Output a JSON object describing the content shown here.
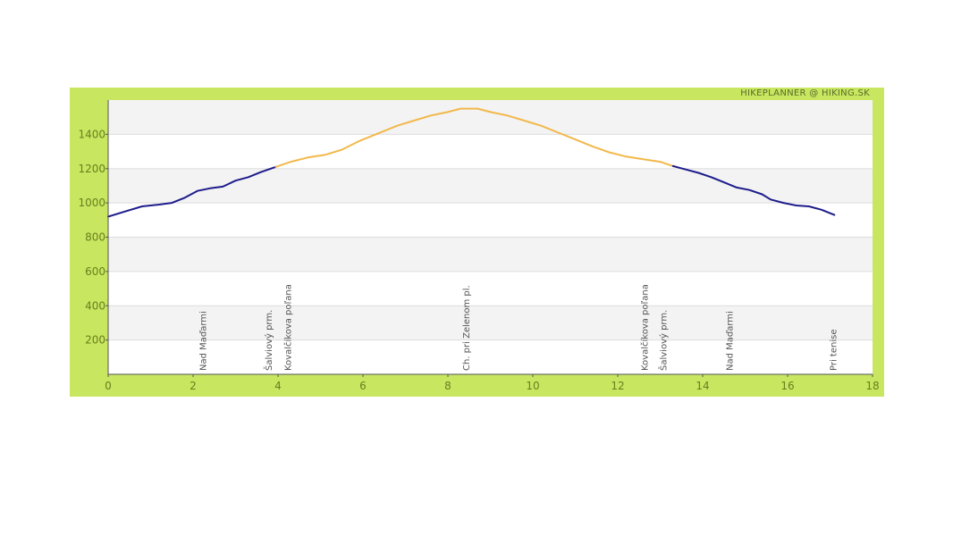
{
  "brand_label": "HIKEPLANNER @ HIKING.SK",
  "colors": {
    "frame": "#c8e660",
    "band_light": "#ffffff",
    "band_dark": "#f3f3f3",
    "grid": "#dddddd",
    "line_low": "#1c1c8c",
    "line_high": "#f2b84b",
    "tick": "#6a7f1e"
  },
  "chart_data": {
    "type": "line",
    "title": "",
    "xlabel": "",
    "ylabel": "",
    "xlim": [
      0,
      18
    ],
    "ylim": [
      0,
      1600
    ],
    "x_ticks": [
      0,
      2,
      4,
      6,
      8,
      10,
      12,
      14,
      16,
      18
    ],
    "y_ticks": [
      200,
      400,
      600,
      800,
      1000,
      1200,
      1400
    ],
    "grid": true,
    "series": [
      {
        "color": "#1c1c8c",
        "points": [
          [
            0,
            920
          ],
          [
            0.4,
            950
          ],
          [
            0.8,
            980
          ],
          [
            1.2,
            990
          ],
          [
            1.5,
            1000
          ],
          [
            1.8,
            1030
          ],
          [
            2.1,
            1070
          ],
          [
            2.4,
            1085
          ],
          [
            2.7,
            1095
          ],
          [
            3.0,
            1130
          ],
          [
            3.3,
            1150
          ],
          [
            3.6,
            1180
          ],
          [
            3.95,
            1210
          ]
        ]
      },
      {
        "color": "#f2b84b",
        "points": [
          [
            3.95,
            1210
          ],
          [
            4.3,
            1240
          ],
          [
            4.7,
            1265
          ],
          [
            5.1,
            1280
          ],
          [
            5.5,
            1310
          ],
          [
            5.9,
            1360
          ],
          [
            6.3,
            1400
          ],
          [
            6.8,
            1450
          ],
          [
            7.2,
            1480
          ],
          [
            7.6,
            1510
          ],
          [
            8.0,
            1530
          ],
          [
            8.3,
            1550
          ],
          [
            8.7,
            1550
          ],
          [
            9.0,
            1530
          ],
          [
            9.4,
            1510
          ],
          [
            9.8,
            1480
          ],
          [
            10.2,
            1450
          ],
          [
            10.6,
            1410
          ],
          [
            11.0,
            1370
          ],
          [
            11.4,
            1330
          ],
          [
            11.8,
            1295
          ],
          [
            12.2,
            1270
          ],
          [
            12.6,
            1255
          ],
          [
            13.0,
            1240
          ],
          [
            13.3,
            1215
          ]
        ]
      },
      {
        "color": "#1c1c8c",
        "points": [
          [
            13.3,
            1215
          ],
          [
            13.6,
            1195
          ],
          [
            13.9,
            1175
          ],
          [
            14.2,
            1150
          ],
          [
            14.5,
            1120
          ],
          [
            14.8,
            1090
          ],
          [
            15.1,
            1075
          ],
          [
            15.4,
            1050
          ],
          [
            15.6,
            1020
          ],
          [
            15.9,
            1000
          ],
          [
            16.2,
            985
          ],
          [
            16.5,
            980
          ],
          [
            16.8,
            960
          ],
          [
            17.1,
            930
          ]
        ]
      }
    ],
    "waypoints": [
      {
        "x": 2.3,
        "label": "Nad Maďarmi"
      },
      {
        "x": 3.85,
        "label": "Šalviový prm."
      },
      {
        "x": 4.3,
        "label": "Kovalčíkova poľana"
      },
      {
        "x": 8.5,
        "label": "Ch. pri Zelenom pl."
      },
      {
        "x": 12.7,
        "label": "Kovalčíkova poľana"
      },
      {
        "x": 13.15,
        "label": "Šalviový prm."
      },
      {
        "x": 14.7,
        "label": "Nad Maďarmi"
      },
      {
        "x": 17.15,
        "label": "Pri tenise"
      }
    ]
  }
}
